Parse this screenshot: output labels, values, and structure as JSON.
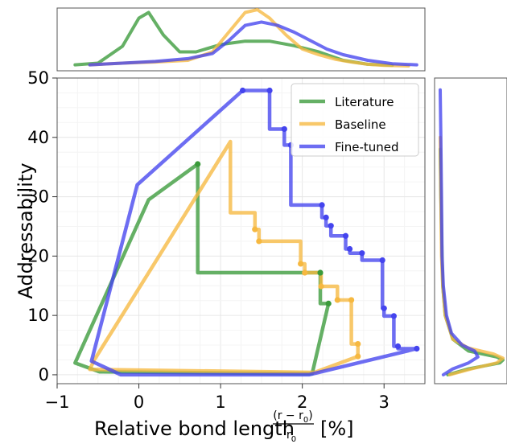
{
  "chart_data": {
    "type": "line",
    "xlabel": "Relative bond length",
    "xlabel_fraction": {
      "numerator": "(r − r",
      "numerator_sub": "0",
      "numerator_close": ")",
      "denominator": "r",
      "denominator_sub": "0"
    },
    "xlabel_unit": "[%]",
    "ylabel": "Addressability",
    "xlim": [
      -1.0,
      3.5
    ],
    "ylim": [
      -1.5,
      50
    ],
    "x_ticks": [
      -1,
      0,
      1,
      2,
      3
    ],
    "y_ticks": [
      0,
      10,
      20,
      30,
      40,
      50
    ],
    "x_tick_labels": [
      "−1",
      "0",
      "1",
      "2",
      "3"
    ],
    "y_tick_labels": [
      "0",
      "10",
      "20",
      "30",
      "40",
      "50"
    ],
    "grid": true,
    "legend_position": "top-right",
    "series": [
      {
        "name": "Literature",
        "color": "#3a9a3a",
        "outline": [
          [
            -0.78,
            2.0
          ],
          [
            0.12,
            29.5
          ],
          [
            0.72,
            35.5
          ],
          [
            0.72,
            17.2
          ],
          [
            2.22,
            17.2
          ],
          [
            2.22,
            12.0
          ],
          [
            2.32,
            12.0
          ],
          [
            2.12,
            0.2
          ],
          [
            -0.48,
            0.5
          ],
          [
            -0.78,
            2.0
          ]
        ],
        "markers": [
          [
            0.72,
            35.5
          ],
          [
            2.22,
            17.2
          ],
          [
            2.32,
            12.0
          ]
        ]
      },
      {
        "name": "Baseline",
        "color": "#f6b840",
        "outline": [
          [
            -0.55,
            2.4
          ],
          [
            1.12,
            39.3
          ],
          [
            1.12,
            27.3
          ],
          [
            1.42,
            27.3
          ],
          [
            1.42,
            24.5
          ],
          [
            1.47,
            24.5
          ],
          [
            1.47,
            22.5
          ],
          [
            1.98,
            22.5
          ],
          [
            1.98,
            18.7
          ],
          [
            2.03,
            18.7
          ],
          [
            2.03,
            17.2
          ],
          [
            2.23,
            17.2
          ],
          [
            2.23,
            14.9
          ],
          [
            2.43,
            14.9
          ],
          [
            2.43,
            12.6
          ],
          [
            2.6,
            12.6
          ],
          [
            2.6,
            5.2
          ],
          [
            2.68,
            5.2
          ],
          [
            2.68,
            3.1
          ],
          [
            2.15,
            0.4
          ],
          [
            -0.6,
            0.9
          ],
          [
            -0.55,
            2.4
          ]
        ],
        "markers": [
          [
            1.42,
            24.5
          ],
          [
            1.47,
            22.5
          ],
          [
            1.98,
            18.7
          ],
          [
            2.03,
            17.2
          ],
          [
            2.23,
            14.9
          ],
          [
            2.43,
            12.6
          ],
          [
            2.6,
            12.6
          ],
          [
            2.68,
            5.2
          ],
          [
            2.68,
            3.1
          ]
        ]
      },
      {
        "name": "Fine-tuned",
        "color": "#4444ee",
        "outline": [
          [
            -0.22,
            0.0
          ],
          [
            -0.58,
            2.3
          ],
          [
            -0.02,
            32.0
          ],
          [
            1.27,
            47.9
          ],
          [
            1.6,
            47.9
          ],
          [
            1.6,
            41.4
          ],
          [
            1.78,
            41.4
          ],
          [
            1.78,
            38.7
          ],
          [
            1.86,
            38.7
          ],
          [
            1.86,
            28.6
          ],
          [
            2.24,
            28.6
          ],
          [
            2.24,
            26.5
          ],
          [
            2.29,
            26.5
          ],
          [
            2.29,
            25.1
          ],
          [
            2.35,
            25.1
          ],
          [
            2.35,
            23.4
          ],
          [
            2.53,
            23.4
          ],
          [
            2.53,
            21.2
          ],
          [
            2.58,
            21.2
          ],
          [
            2.58,
            20.5
          ],
          [
            2.73,
            20.5
          ],
          [
            2.73,
            19.3
          ],
          [
            2.98,
            19.3
          ],
          [
            2.98,
            11.2
          ],
          [
            3.0,
            11.2
          ],
          [
            3.0,
            9.9
          ],
          [
            3.12,
            9.9
          ],
          [
            3.12,
            4.8
          ],
          [
            3.17,
            4.8
          ],
          [
            3.17,
            4.4
          ],
          [
            3.4,
            4.4
          ],
          [
            2.08,
            0.0
          ],
          [
            -0.22,
            0.0
          ]
        ],
        "markers": [
          [
            1.27,
            47.9
          ],
          [
            1.6,
            47.9
          ],
          [
            1.78,
            41.4
          ],
          [
            1.86,
            38.7
          ],
          [
            2.24,
            28.6
          ],
          [
            2.29,
            26.5
          ],
          [
            2.35,
            25.1
          ],
          [
            2.53,
            23.4
          ],
          [
            2.58,
            21.2
          ],
          [
            2.73,
            20.5
          ],
          [
            2.98,
            19.3
          ],
          [
            3.0,
            11.2
          ],
          [
            3.12,
            9.9
          ],
          [
            3.17,
            4.8
          ],
          [
            3.4,
            4.4
          ]
        ]
      }
    ],
    "top_marginal": {
      "type": "density",
      "series": [
        {
          "name": "Literature",
          "x": [
            -0.78,
            -0.5,
            -0.2,
            0.0,
            0.12,
            0.3,
            0.5,
            0.7,
            1.0,
            1.3,
            1.6,
            1.9,
            2.2,
            2.5,
            2.8,
            3.1
          ],
          "y": [
            0.02,
            0.05,
            0.35,
            0.85,
            0.95,
            0.55,
            0.25,
            0.25,
            0.38,
            0.44,
            0.44,
            0.36,
            0.25,
            0.1,
            0.03,
            0.01
          ]
        },
        {
          "name": "Baseline",
          "x": [
            -0.6,
            -0.2,
            0.2,
            0.6,
            0.9,
            1.1,
            1.3,
            1.45,
            1.6,
            1.8,
            2.0,
            2.2,
            2.4,
            2.6,
            2.8,
            3.0,
            3.3
          ],
          "y": [
            0.02,
            0.05,
            0.07,
            0.1,
            0.25,
            0.6,
            0.95,
            1.0,
            0.85,
            0.55,
            0.3,
            0.2,
            0.12,
            0.07,
            0.03,
            0.01,
            0.0
          ]
        },
        {
          "name": "Fine-tuned",
          "x": [
            -0.6,
            -0.2,
            0.2,
            0.6,
            0.9,
            1.1,
            1.3,
            1.5,
            1.7,
            1.9,
            2.1,
            2.3,
            2.5,
            2.8,
            3.1,
            3.4
          ],
          "y": [
            0.02,
            0.05,
            0.08,
            0.13,
            0.22,
            0.45,
            0.72,
            0.78,
            0.72,
            0.6,
            0.45,
            0.3,
            0.2,
            0.1,
            0.04,
            0.02
          ]
        }
      ]
    },
    "right_marginal": {
      "type": "density",
      "series": [
        {
          "name": "Literature",
          "y": [
            0.0,
            1.0,
            2.0,
            2.5,
            3.0,
            4.0,
            6.0,
            10.0,
            15.0,
            20.0,
            30.0,
            38.0
          ],
          "x": [
            0.12,
            0.45,
            0.95,
            1.0,
            0.9,
            0.45,
            0.2,
            0.08,
            0.04,
            0.03,
            0.01,
            0.0
          ]
        },
        {
          "name": "Baseline",
          "y": [
            0.0,
            1.0,
            2.0,
            2.8,
            3.5,
            4.5,
            6.0,
            10.0,
            15.0,
            20.0,
            30.0,
            40.0
          ],
          "x": [
            0.15,
            0.5,
            0.9,
            1.0,
            0.85,
            0.45,
            0.2,
            0.08,
            0.04,
            0.02,
            0.01,
            0.0
          ]
        },
        {
          "name": "Fine-tuned",
          "y": [
            0.0,
            1.0,
            2.0,
            3.0,
            4.0,
            5.0,
            7.0,
            10.0,
            15.0,
            20.0,
            30.0,
            40.0,
            48.0
          ],
          "x": [
            0.05,
            0.2,
            0.45,
            0.6,
            0.55,
            0.35,
            0.18,
            0.1,
            0.05,
            0.03,
            0.02,
            0.01,
            0.0
          ]
        }
      ]
    }
  }
}
